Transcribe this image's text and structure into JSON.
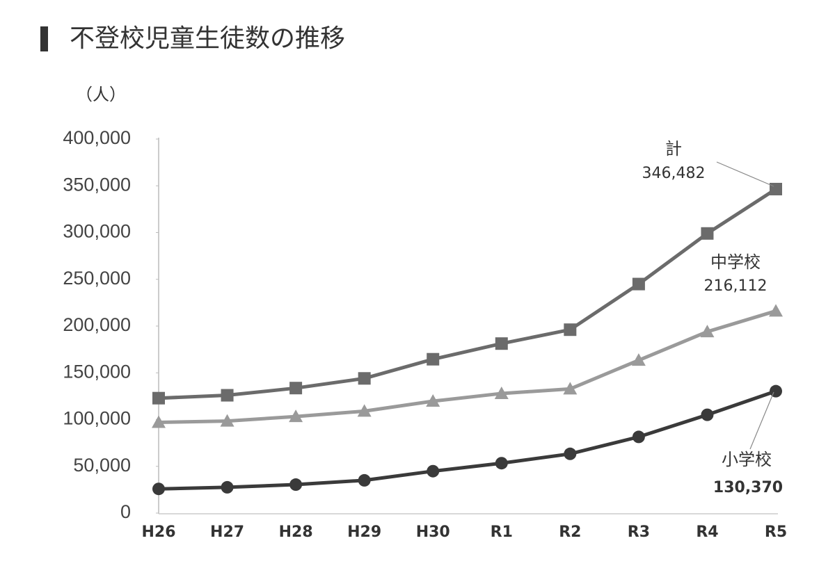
{
  "chart_data": {
    "type": "line",
    "title": "不登校児童生徒数の推移",
    "y_label": "（人）",
    "categories": [
      "H26",
      "H27",
      "H28",
      "H29",
      "H30",
      "R1",
      "R2",
      "R3",
      "R4",
      "R5"
    ],
    "ylim": [
      0,
      400000
    ],
    "yticks": [
      0,
      {
        "value": 50000,
        "label": "50,000"
      },
      {
        "value": 100000,
        "label": "100,000"
      },
      {
        "value": 150000,
        "label": "150,000"
      },
      {
        "value": 200000,
        "label": "200,000"
      },
      {
        "value": 250000,
        "label": "250,000"
      },
      {
        "value": 300000,
        "label": "300,000"
      },
      {
        "value": 350000,
        "label": "350,000"
      },
      {
        "value": 400000,
        "label": "400,000"
      }
    ],
    "series": [
      {
        "name": "計",
        "color": "#6b6b6b",
        "marker": "square",
        "values": [
          122897,
          125991,
          133683,
          144031,
          164528,
          181272,
          196127,
          244940,
          299048,
          346482
        ],
        "value_labels": [
          null,
          null,
          null,
          null,
          null,
          null,
          null,
          null,
          null,
          "346,482"
        ]
      },
      {
        "name": "中学校",
        "color": "#9a9a9a",
        "marker": "triangle",
        "values": [
          97033,
          98408,
          103235,
          108999,
          119687,
          127922,
          132777,
          163442,
          193936,
          216112
        ],
        "value_labels": [
          null,
          null,
          null,
          null,
          null,
          null,
          null,
          null,
          null,
          "216,112"
        ]
      },
      {
        "name": "小学校",
        "color": "#3a3a3a",
        "marker": "circle",
        "values": [
          25864,
          27583,
          30448,
          35032,
          44841,
          53350,
          63350,
          81498,
          105112,
          130370
        ],
        "value_labels": [
          null,
          null,
          null,
          null,
          null,
          null,
          null,
          null,
          null,
          "130,370"
        ]
      }
    ]
  }
}
